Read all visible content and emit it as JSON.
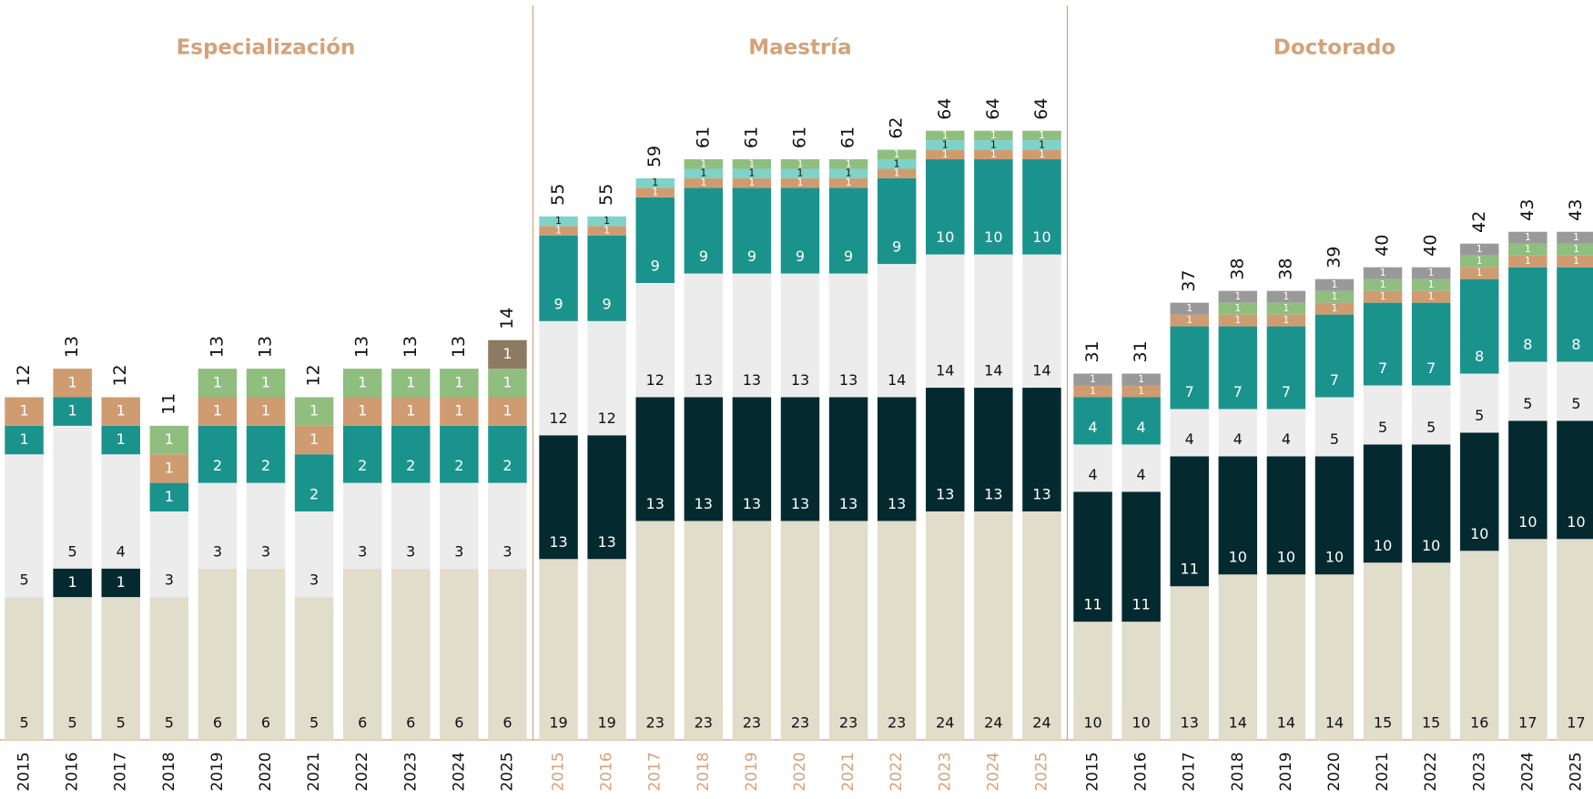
{
  "chart_data": [
    {
      "type": "bar",
      "stacked": true,
      "title": "Especialización",
      "title_color": "#d4a27a",
      "category_color": "#111111",
      "categories": [
        "2015",
        "2016",
        "2017",
        "2018",
        "2019",
        "2020",
        "2021",
        "2022",
        "2023",
        "2024",
        "2025"
      ],
      "ylim": [
        0,
        24
      ],
      "series": [
        {
          "color": "#e0ddcb",
          "values": [
            5,
            5,
            5,
            5,
            6,
            6,
            5,
            6,
            6,
            6,
            6
          ]
        },
        {
          "color": "#042a30",
          "values": [
            null,
            1,
            1,
            null,
            null,
            null,
            null,
            null,
            null,
            null,
            null
          ]
        },
        {
          "color": "#ececec",
          "values": [
            5,
            5,
            4,
            3,
            3,
            3,
            3,
            3,
            3,
            3,
            3
          ]
        },
        {
          "color": "#1b938d",
          "values": [
            1,
            1,
            1,
            1,
            2,
            2,
            2,
            2,
            2,
            2,
            2
          ]
        },
        {
          "color": "#cf9c72",
          "values": [
            1,
            1,
            1,
            1,
            1,
            1,
            1,
            1,
            1,
            1,
            1
          ]
        },
        {
          "color": "#8fbe7f",
          "values": [
            null,
            null,
            null,
            1,
            1,
            1,
            1,
            1,
            1,
            1,
            1
          ]
        },
        {
          "color": "#8d7a62",
          "values": [
            null,
            null,
            null,
            null,
            null,
            null,
            null,
            null,
            null,
            null,
            1
          ]
        }
      ],
      "totals": [
        12,
        13,
        12,
        11,
        13,
        13,
        12,
        13,
        13,
        13,
        14
      ]
    },
    {
      "type": "bar",
      "stacked": true,
      "title": "Maestría",
      "title_color": "#d4a27a",
      "category_color": "#d4a27a",
      "categories": [
        "2015",
        "2016",
        "2017",
        "2018",
        "2019",
        "2020",
        "2021",
        "2022",
        "2023",
        "2024",
        "2025"
      ],
      "ylim": [
        0,
        72
      ],
      "series": [
        {
          "color": "#e0ddcb",
          "values": [
            19,
            19,
            23,
            23,
            23,
            23,
            23,
            23,
            24,
            24,
            24
          ]
        },
        {
          "color": "#042a30",
          "values": [
            13,
            13,
            13,
            13,
            13,
            13,
            13,
            13,
            13,
            13,
            13
          ]
        },
        {
          "color": "#ececec",
          "values": [
            12,
            12,
            12,
            13,
            13,
            13,
            13,
            14,
            14,
            14,
            14
          ]
        },
        {
          "color": "#1b938d",
          "values": [
            9,
            9,
            9,
            9,
            9,
            9,
            9,
            9,
            10,
            10,
            10
          ]
        },
        {
          "color": "#cf9c72",
          "values": [
            1,
            1,
            1,
            1,
            1,
            1,
            1,
            1,
            1,
            1,
            1
          ]
        },
        {
          "color": "#7ed3c9",
          "values": [
            1,
            1,
            1,
            1,
            1,
            1,
            1,
            1,
            1,
            1,
            1
          ]
        },
        {
          "color": "#8fbe7f",
          "values": [
            null,
            null,
            null,
            1,
            1,
            1,
            1,
            1,
            1,
            1,
            1
          ]
        }
      ],
      "totals": [
        55,
        55,
        59,
        61,
        61,
        61,
        61,
        62,
        64,
        64,
        64
      ]
    },
    {
      "type": "bar",
      "stacked": true,
      "title": "Doctorado",
      "title_color": "#d4a27a",
      "category_color": "#111111",
      "categories": [
        "2015",
        "2016",
        "2017",
        "2018",
        "2019",
        "2020",
        "2021",
        "2022",
        "2023",
        "2024",
        "2025"
      ],
      "ylim": [
        0,
        58
      ],
      "series": [
        {
          "color": "#e0ddcb",
          "values": [
            10,
            10,
            13,
            14,
            14,
            14,
            15,
            15,
            16,
            17,
            17
          ]
        },
        {
          "color": "#042a30",
          "values": [
            11,
            11,
            11,
            10,
            10,
            10,
            10,
            10,
            10,
            10,
            10
          ]
        },
        {
          "color": "#ececec",
          "values": [
            4,
            4,
            4,
            4,
            4,
            5,
            5,
            5,
            5,
            5,
            5
          ]
        },
        {
          "color": "#1b938d",
          "values": [
            4,
            4,
            7,
            7,
            7,
            7,
            7,
            7,
            8,
            8,
            8
          ]
        },
        {
          "color": "#cf9c72",
          "values": [
            1,
            1,
            1,
            1,
            1,
            1,
            1,
            1,
            1,
            1,
            1
          ]
        },
        {
          "color": "#8fbe7f",
          "values": [
            null,
            null,
            null,
            1,
            1,
            1,
            1,
            1,
            1,
            1,
            1
          ]
        },
        {
          "color": "#999999",
          "values": [
            1,
            1,
            1,
            1,
            1,
            1,
            1,
            1,
            1,
            1,
            1
          ]
        }
      ],
      "totals": [
        31,
        31,
        37,
        38,
        38,
        39,
        40,
        40,
        42,
        43,
        43
      ]
    }
  ]
}
